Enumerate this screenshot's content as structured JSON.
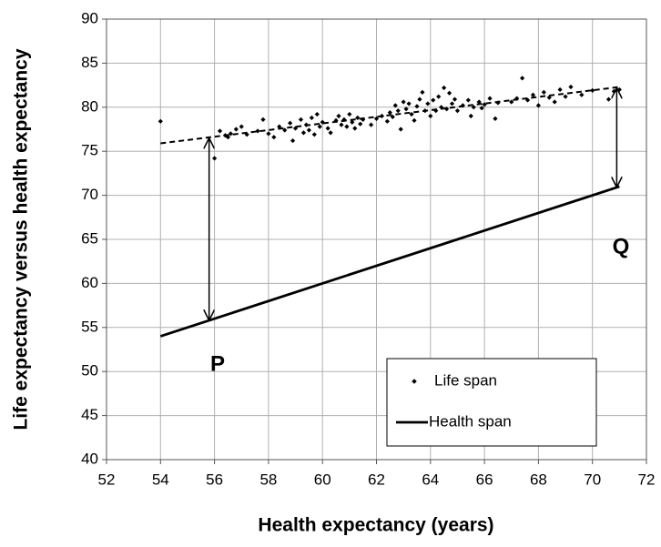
{
  "chart_data": {
    "type": "scatter",
    "xlabel": "Health expectancy (years)",
    "ylabel": "Life expectancy  versus health expectancy",
    "xlim": [
      52,
      72
    ],
    "xticks": [
      52,
      54,
      56,
      58,
      60,
      62,
      64,
      66,
      68,
      70,
      72
    ],
    "ylim": [
      40,
      90
    ],
    "yticks": [
      40,
      45,
      50,
      55,
      60,
      65,
      70,
      75,
      80,
      85,
      90
    ],
    "grid": true,
    "legend": "lower right",
    "series": [
      {
        "name": "Life span",
        "type": "scatter",
        "color": "#000000",
        "x": [
          54.0,
          56.0,
          56.2,
          56.4,
          56.6,
          56.8,
          57.0,
          56.5,
          57.2,
          57.6,
          57.8,
          58.0,
          58.2,
          58.4,
          58.6,
          58.8,
          58.9,
          59.0,
          59.2,
          59.3,
          59.4,
          59.5,
          59.6,
          59.7,
          59.8,
          59.9,
          60.0,
          60.2,
          60.3,
          60.5,
          60.6,
          60.7,
          60.8,
          60.9,
          61.0,
          61.1,
          61.2,
          61.3,
          61.4,
          61.5,
          61.8,
          62.0,
          62.2,
          62.4,
          62.5,
          62.6,
          62.7,
          62.8,
          62.9,
          63.0,
          63.1,
          63.2,
          63.3,
          63.4,
          63.5,
          63.6,
          63.7,
          63.8,
          63.9,
          64.0,
          64.1,
          64.2,
          64.3,
          64.4,
          64.5,
          64.6,
          64.7,
          64.8,
          64.9,
          65.0,
          65.2,
          65.4,
          65.5,
          65.6,
          65.8,
          65.9,
          66.0,
          66.2,
          66.4,
          66.5,
          67.0,
          67.2,
          67.4,
          67.6,
          67.8,
          68.0,
          68.2,
          68.4,
          68.6,
          68.8,
          69.0,
          69.2,
          69.6,
          70.0,
          70.6,
          70.8,
          71.0
        ],
        "values": [
          78.4,
          74.2,
          77.3,
          76.8,
          77.0,
          77.5,
          77.8,
          76.6,
          76.9,
          77.3,
          78.6,
          77.0,
          76.6,
          77.8,
          77.4,
          78.2,
          76.2,
          77.6,
          78.6,
          77.1,
          78.0,
          77.4,
          78.8,
          76.9,
          79.2,
          77.8,
          78.3,
          77.6,
          77.1,
          78.5,
          79.0,
          78.0,
          78.6,
          77.8,
          79.2,
          78.3,
          77.6,
          78.8,
          78.1,
          78.6,
          78.0,
          78.7,
          79.0,
          78.4,
          79.4,
          78.9,
          80.2,
          79.6,
          77.5,
          80.6,
          79.8,
          80.4,
          79.2,
          78.5,
          80.1,
          80.9,
          81.7,
          79.6,
          80.4,
          79.0,
          80.8,
          79.6,
          81.2,
          80.0,
          82.2,
          79.8,
          81.6,
          80.4,
          80.9,
          79.6,
          80.2,
          80.8,
          79.0,
          80.0,
          80.6,
          79.9,
          80.3,
          81.0,
          78.7,
          80.5,
          80.6,
          81.0,
          83.3,
          80.8,
          81.4,
          80.2,
          81.7,
          81.1,
          80.6,
          82.0,
          81.2,
          82.3,
          81.4,
          81.9,
          80.9,
          81.8,
          82.0
        ]
      },
      {
        "type": "line",
        "style": "dashed",
        "color": "#000000",
        "x": [
          54,
          71
        ],
        "values": [
          75.9,
          82.3
        ]
      },
      {
        "name": "Health span",
        "type": "line",
        "style": "solid",
        "color": "#000000",
        "x": [
          54,
          71
        ],
        "values": [
          54,
          71
        ]
      }
    ],
    "arrows": [
      {
        "x": 55.8,
        "from": 76.5,
        "to": 55.8
      },
      {
        "x": 70.9,
        "from": 82.2,
        "to": 70.9
      }
    ],
    "annotations": [
      "P",
      "Q"
    ]
  }
}
